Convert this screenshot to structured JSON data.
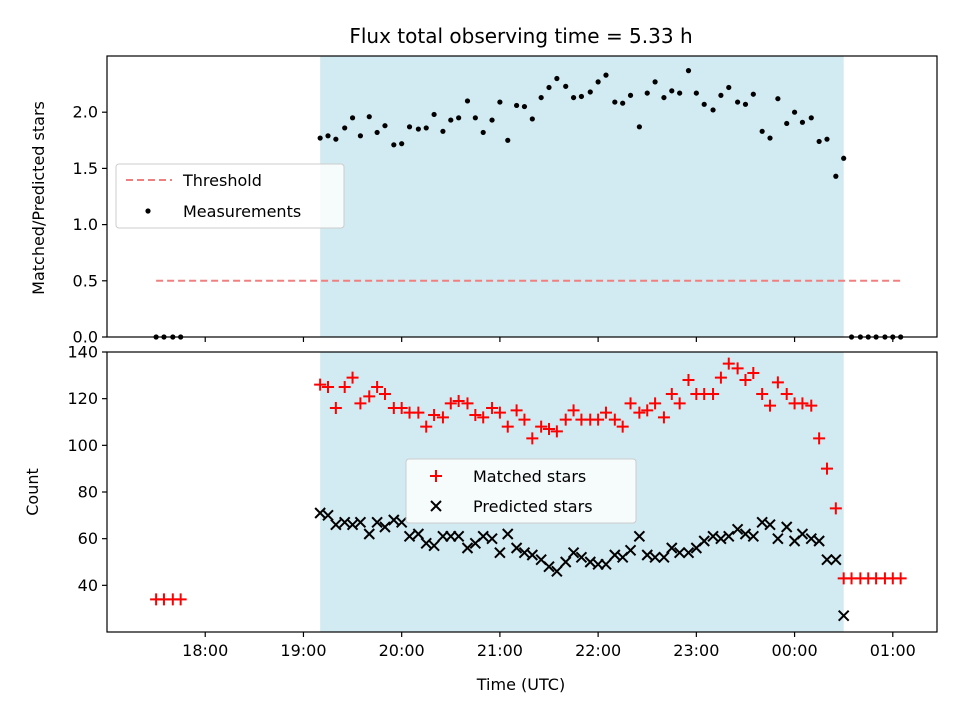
{
  "chart_data": {
    "type": "scatter",
    "title": "Flux total observing time = 5.33 h",
    "xlabel": "Time (UTC)",
    "x_ticks": [
      "18:00",
      "19:00",
      "20:00",
      "21:00",
      "22:00",
      "23:00",
      "00:00",
      "01:00"
    ],
    "x_range_hours": [
      17.0,
      25.45
    ],
    "shaded_interval_hours": [
      19.17,
      24.5
    ],
    "shade_color": "#add8e6",
    "top_panel": {
      "ylabel": "Matched/Predicted stars",
      "ylim": [
        0,
        2.5
      ],
      "yticks": [
        "0.0",
        "0.5",
        "1.0",
        "1.5",
        "2.0"
      ],
      "legend": {
        "placement": "center-left",
        "entries": [
          "Threshold",
          "Measurements"
        ]
      },
      "threshold": {
        "name": "Threshold",
        "value": 0.5,
        "x_start": 17.5,
        "x_end": 25.1,
        "color": "#f08080"
      },
      "measurements": {
        "name": "Measurements",
        "color": "#000000",
        "x": [
          17.5,
          17.58,
          17.67,
          17.75,
          19.17,
          19.25,
          19.33,
          19.42,
          19.5,
          19.58,
          19.67,
          19.75,
          19.83,
          19.92,
          20.0,
          20.08,
          20.17,
          20.25,
          20.33,
          20.42,
          20.5,
          20.58,
          20.67,
          20.75,
          20.83,
          20.92,
          21.0,
          21.08,
          21.17,
          21.25,
          21.33,
          21.42,
          21.5,
          21.58,
          21.67,
          21.75,
          21.83,
          21.92,
          22.0,
          22.08,
          22.17,
          22.25,
          22.33,
          22.42,
          22.5,
          22.58,
          22.67,
          22.75,
          22.83,
          22.92,
          23.0,
          23.08,
          23.17,
          23.25,
          23.33,
          23.42,
          23.5,
          23.58,
          23.67,
          23.75,
          23.83,
          23.92,
          24.0,
          24.08,
          24.17,
          24.25,
          24.33,
          24.42,
          24.5,
          24.58,
          24.67,
          24.75,
          24.83,
          24.92,
          25.0,
          25.08
        ],
        "y": [
          0,
          0,
          0,
          0,
          1.77,
          1.79,
          1.76,
          1.86,
          1.95,
          1.79,
          1.96,
          1.82,
          1.88,
          1.71,
          1.72,
          1.87,
          1.85,
          1.86,
          1.98,
          1.83,
          1.93,
          1.95,
          2.1,
          1.95,
          1.82,
          1.93,
          2.09,
          1.75,
          2.06,
          2.05,
          1.94,
          2.13,
          2.22,
          2.3,
          2.23,
          2.13,
          2.14,
          2.18,
          2.27,
          2.33,
          2.09,
          2.08,
          2.15,
          1.87,
          2.17,
          2.27,
          2.13,
          2.19,
          2.17,
          2.37,
          2.17,
          2.07,
          2.02,
          2.15,
          2.22,
          2.09,
          2.07,
          2.16,
          1.83,
          1.77,
          2.12,
          1.9,
          2.0,
          1.91,
          1.95,
          1.74,
          1.76,
          1.43,
          1.59,
          0,
          0,
          0,
          0,
          0,
          0,
          0
        ]
      }
    },
    "bottom_panel": {
      "ylabel": "Count",
      "ylim": [
        20,
        140
      ],
      "yticks": [
        "40",
        "60",
        "80",
        "100",
        "120",
        "140"
      ],
      "legend": {
        "placement": "center",
        "entries": [
          "Matched stars",
          "Predicted stars"
        ]
      },
      "series": [
        {
          "name": "Matched stars",
          "marker": "+",
          "color": "#ff0000",
          "x": [
            17.5,
            17.58,
            17.67,
            17.75,
            19.17,
            19.25,
            19.33,
            19.42,
            19.5,
            19.58,
            19.67,
            19.75,
            19.83,
            19.92,
            20.0,
            20.08,
            20.17,
            20.25,
            20.33,
            20.42,
            20.5,
            20.58,
            20.67,
            20.75,
            20.83,
            20.92,
            21.0,
            21.08,
            21.17,
            21.25,
            21.33,
            21.42,
            21.5,
            21.58,
            21.67,
            21.75,
            21.83,
            21.92,
            22.0,
            22.08,
            22.17,
            22.25,
            22.33,
            22.42,
            22.5,
            22.58,
            22.67,
            22.75,
            22.83,
            22.92,
            23.0,
            23.08,
            23.17,
            23.25,
            23.33,
            23.42,
            23.5,
            23.58,
            23.67,
            23.75,
            23.83,
            23.92,
            24.0,
            24.08,
            24.17,
            24.25,
            24.33,
            24.42,
            24.5,
            24.58,
            24.67,
            24.75,
            24.83,
            24.92,
            25.0,
            25.08
          ],
          "y": [
            34,
            34,
            34,
            34,
            126,
            125,
            116,
            125,
            129,
            118,
            121,
            125,
            122,
            116,
            116,
            114,
            114,
            108,
            113,
            112,
            118,
            119,
            118,
            113,
            112,
            116,
            114,
            108,
            115,
            111,
            103,
            108,
            107,
            106,
            111,
            115,
            111,
            111,
            111,
            114,
            111,
            108,
            118,
            114,
            115,
            118,
            112,
            122,
            118,
            128,
            122,
            122,
            122,
            129,
            135,
            133,
            128,
            131,
            122,
            117,
            127,
            122,
            118,
            118,
            117,
            103,
            90,
            73,
            43,
            43,
            43,
            43,
            43,
            43,
            43,
            43
          ]
        },
        {
          "name": "Predicted stars",
          "marker": "x",
          "color": "#000000",
          "x": [
            19.17,
            19.25,
            19.33,
            19.42,
            19.5,
            19.58,
            19.67,
            19.75,
            19.83,
            19.92,
            20.0,
            20.08,
            20.17,
            20.25,
            20.33,
            20.42,
            20.5,
            20.58,
            20.67,
            20.75,
            20.83,
            20.92,
            21.0,
            21.08,
            21.17,
            21.25,
            21.33,
            21.42,
            21.5,
            21.58,
            21.67,
            21.75,
            21.83,
            21.92,
            22.0,
            22.08,
            22.17,
            22.25,
            22.33,
            22.42,
            22.5,
            22.58,
            22.67,
            22.75,
            22.83,
            22.92,
            23.0,
            23.08,
            23.17,
            23.25,
            23.33,
            23.42,
            23.5,
            23.58,
            23.67,
            23.75,
            23.83,
            23.92,
            24.0,
            24.08,
            24.17,
            24.25,
            24.33,
            24.42,
            24.5
          ],
          "y": [
            71,
            70,
            66,
            67,
            66,
            67,
            62,
            67,
            65,
            68,
            67,
            61,
            62,
            58,
            57,
            61,
            61,
            61,
            56,
            58,
            61,
            60,
            54,
            62,
            56,
            54,
            53,
            51,
            48,
            46,
            50,
            54,
            52,
            50,
            49,
            49,
            53,
            52,
            55,
            61,
            53,
            52,
            52,
            56,
            54,
            54,
            56,
            59,
            61,
            60,
            61,
            64,
            62,
            61,
            67,
            66,
            60,
            65,
            59,
            62,
            60,
            59,
            51,
            51,
            27
          ]
        }
      ]
    }
  }
}
